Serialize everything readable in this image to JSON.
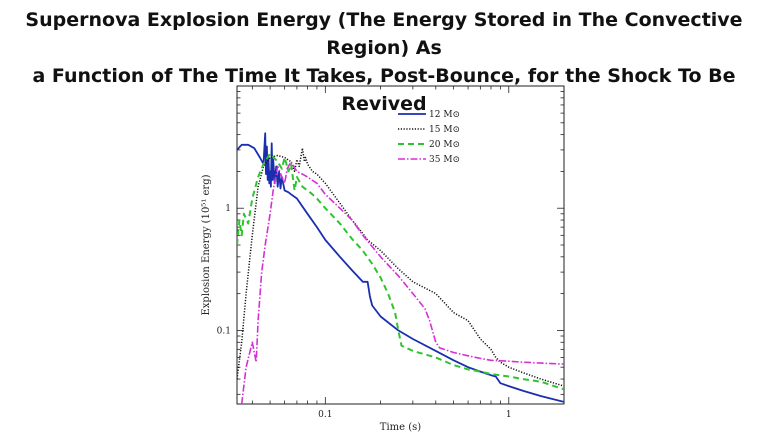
{
  "title_line1": "Supernova Explosion Energy (The Energy Stored in The Convective Region) As",
  "title_line2": "a Function of The Time It Takes, Post-Bounce, for the Shock To Be Revived",
  "chart_data": {
    "type": "line",
    "xlabel": "Time (s)",
    "ylabel": "Explosion Energy (10⁵¹ erg)",
    "xscale": "log",
    "yscale": "log",
    "xlim": [
      0.033,
      2.0
    ],
    "ylim": [
      0.025,
      10
    ],
    "xticks": [
      {
        "value": 0.1,
        "label": "0.1"
      },
      {
        "value": 1,
        "label": "1"
      }
    ],
    "yticks": [
      {
        "value": 0.1,
        "label": "0.1"
      },
      {
        "value": 1,
        "label": "1"
      }
    ],
    "legend_position": "top-right",
    "series": [
      {
        "name": "12 M⊙",
        "color": "#1a2fb0",
        "dash": "",
        "width": 1.8,
        "x": [
          0.033,
          0.035,
          0.038,
          0.041,
          0.044,
          0.046,
          0.047,
          0.0475,
          0.048,
          0.0485,
          0.049,
          0.0495,
          0.05,
          0.0505,
          0.051,
          0.0515,
          0.052,
          0.053,
          0.054,
          0.055,
          0.056,
          0.057,
          0.058,
          0.06,
          0.063,
          0.065,
          0.07,
          0.08,
          0.09,
          0.1,
          0.12,
          0.14,
          0.16,
          0.17,
          0.175,
          0.18,
          0.2,
          0.25,
          0.3,
          0.4,
          0.5,
          0.6,
          0.7,
          0.8,
          0.85,
          0.9,
          1.0,
          1.2,
          1.5,
          2.0
        ],
        "y": [
          3.0,
          3.3,
          3.3,
          3.1,
          2.6,
          2.3,
          4.1,
          1.9,
          3.2,
          1.7,
          2.6,
          1.6,
          2.0,
          1.5,
          3.4,
          1.7,
          2.5,
          1.6,
          2.2,
          1.5,
          2.0,
          1.45,
          1.8,
          1.4,
          1.35,
          1.3,
          1.2,
          0.9,
          0.7,
          0.55,
          0.4,
          0.31,
          0.25,
          0.25,
          0.19,
          0.16,
          0.13,
          0.1,
          0.085,
          0.068,
          0.057,
          0.05,
          0.046,
          0.043,
          0.042,
          0.037,
          0.035,
          0.032,
          0.029,
          0.026
        ]
      },
      {
        "name": "15 M⊙",
        "color": "#111111",
        "dash": "1.2,1.6",
        "width": 1.5,
        "x": [
          0.033,
          0.035,
          0.037,
          0.04,
          0.043,
          0.046,
          0.05,
          0.055,
          0.06,
          0.065,
          0.068,
          0.07,
          0.072,
          0.075,
          0.077,
          0.078,
          0.08,
          0.085,
          0.09,
          0.1,
          0.12,
          0.14,
          0.16,
          0.17,
          0.2,
          0.25,
          0.3,
          0.4,
          0.5,
          0.6,
          0.7,
          0.8,
          0.85,
          0.9,
          1.0,
          1.2,
          1.5,
          2.0
        ],
        "y": [
          0.04,
          0.08,
          0.2,
          0.6,
          1.5,
          2.2,
          2.6,
          2.7,
          2.6,
          2.4,
          2.0,
          2.5,
          2.2,
          3.1,
          2.4,
          2.6,
          2.3,
          2.0,
          1.9,
          1.6,
          1.1,
          0.8,
          0.62,
          0.55,
          0.45,
          0.32,
          0.25,
          0.2,
          0.14,
          0.12,
          0.085,
          0.07,
          0.06,
          0.055,
          0.05,
          0.045,
          0.04,
          0.035
        ]
      },
      {
        "name": "20 M⊙",
        "color": "#2fc42f",
        "dash": "6,4",
        "width": 2,
        "x": [
          0.033,
          0.034,
          0.035,
          0.036,
          0.038,
          0.04,
          0.043,
          0.046,
          0.05,
          0.055,
          0.058,
          0.06,
          0.063,
          0.065,
          0.068,
          0.07,
          0.075,
          0.08,
          0.085,
          0.09,
          0.1,
          0.12,
          0.14,
          0.16,
          0.18,
          0.2,
          0.22,
          0.24,
          0.25,
          0.26,
          0.3,
          0.4,
          0.5,
          0.6,
          0.7,
          0.8,
          1.0,
          1.2,
          1.5,
          2.0
        ],
        "y": [
          0.5,
          0.8,
          0.6,
          0.9,
          0.75,
          1.2,
          1.8,
          2.3,
          2.8,
          2.4,
          2.1,
          2.6,
          2.0,
          2.3,
          1.4,
          1.8,
          1.5,
          1.4,
          1.3,
          1.2,
          1.0,
          0.75,
          0.56,
          0.45,
          0.35,
          0.27,
          0.2,
          0.14,
          0.1,
          0.075,
          0.068,
          0.06,
          0.052,
          0.048,
          0.046,
          0.044,
          0.042,
          0.04,
          0.038,
          0.033
        ]
      },
      {
        "name": "35 M⊙",
        "color": "#d62fd6",
        "dash": "7,2,1.5,2",
        "width": 1.6,
        "x": [
          0.035,
          0.037,
          0.04,
          0.042,
          0.043,
          0.045,
          0.047,
          0.05,
          0.052,
          0.055,
          0.058,
          0.06,
          0.062,
          0.065,
          0.07,
          0.075,
          0.08,
          0.09,
          0.1,
          0.12,
          0.14,
          0.16,
          0.2,
          0.25,
          0.3,
          0.35,
          0.37,
          0.4,
          0.42,
          0.5,
          0.6,
          0.7,
          0.8,
          1.0,
          1.2,
          1.5,
          2.0
        ],
        "y": [
          0.025,
          0.05,
          0.08,
          0.055,
          0.12,
          0.3,
          0.5,
          0.9,
          1.4,
          2.2,
          1.8,
          1.6,
          2.1,
          2.4,
          2.0,
          1.9,
          1.8,
          1.6,
          1.3,
          1.0,
          0.8,
          0.6,
          0.4,
          0.28,
          0.2,
          0.15,
          0.12,
          0.08,
          0.072,
          0.066,
          0.062,
          0.059,
          0.057,
          0.056,
          0.055,
          0.054,
          0.053
        ]
      }
    ]
  }
}
